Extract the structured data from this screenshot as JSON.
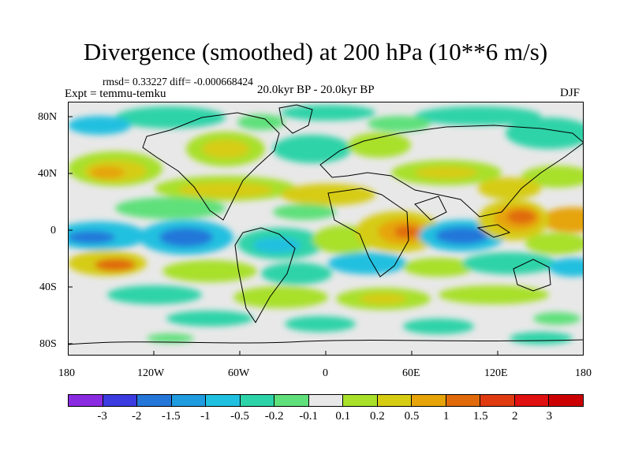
{
  "header": {
    "title": "Divergence (smoothed) at 200 hPa (10**6 m/s)",
    "stats": "rmsd= 0.33227  diff= -0.000668424",
    "experiment": "Expt = temmu-temku",
    "period": "20.0kyr BP - 20.0kyr BP",
    "season": "DJF"
  },
  "map": {
    "projection": "cylindrical equidistant",
    "lon_ticks": [
      "180",
      "120W",
      "60W",
      "0",
      "60E",
      "120E",
      "180"
    ],
    "lat_ticks": [
      "80N",
      "40N",
      "0",
      "40S",
      "80S"
    ]
  },
  "colorbar": {
    "labels": [
      "-3",
      "-2",
      "-1.5",
      "-1",
      "-0.5",
      "-0.2",
      "-0.1",
      "0.1",
      "0.2",
      "0.5",
      "1",
      "1.5",
      "2",
      "3"
    ],
    "colors": [
      "#8a2be2",
      "#3b3be0",
      "#2477d9",
      "#1f9be0",
      "#20c0e0",
      "#2dd3a8",
      "#5fe07a",
      "#e8e8e8",
      "#a8e02a",
      "#d6cc12",
      "#e6a408",
      "#e06a0a",
      "#e03a10",
      "#e01010",
      "#cc0000"
    ]
  }
}
